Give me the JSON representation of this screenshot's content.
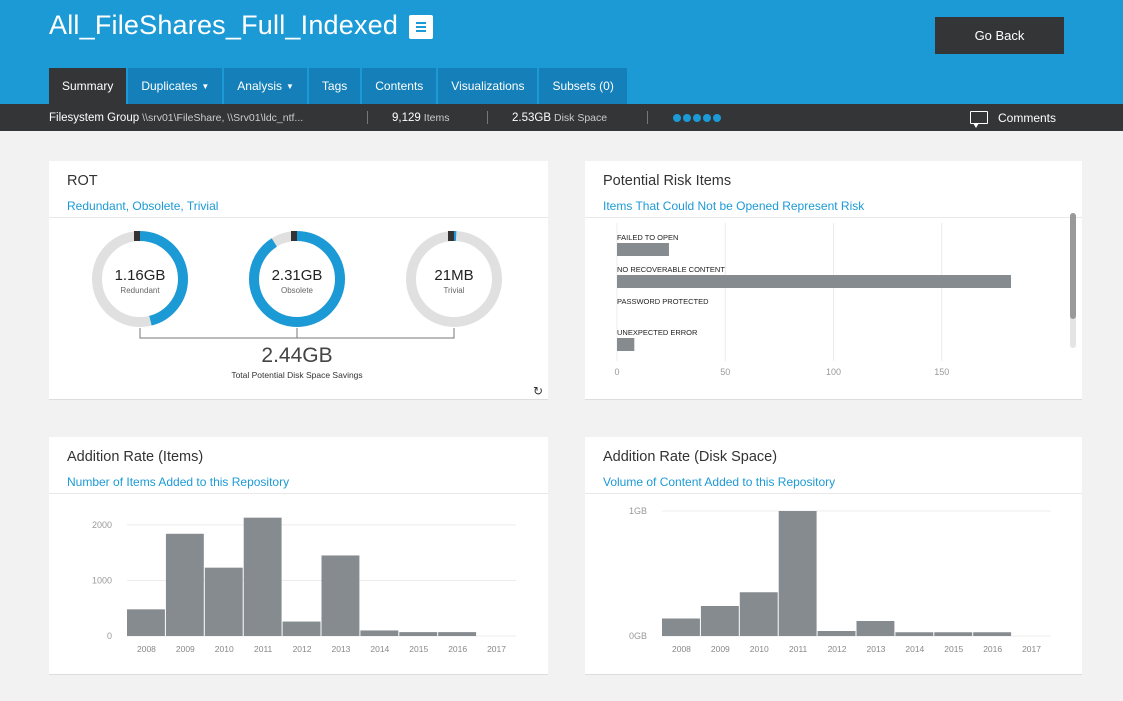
{
  "header": {
    "title": "All_FileShares_Full_Indexed",
    "go_back_label": "Go Back",
    "menu_icon": "hamburger-icon"
  },
  "tabs": [
    {
      "label": "Summary",
      "active": true,
      "caret": ""
    },
    {
      "label": "Duplicates",
      "active": false,
      "caret": "▼"
    },
    {
      "label": "Analysis",
      "active": false,
      "caret": "▼"
    },
    {
      "label": "Tags",
      "active": false,
      "caret": ""
    },
    {
      "label": "Contents",
      "active": false,
      "caret": ""
    },
    {
      "label": "Visualizations",
      "active": false,
      "caret": ""
    },
    {
      "label": "Subsets (0)",
      "active": false,
      "caret": ""
    }
  ],
  "infobar": {
    "group_label": "Filesystem Group",
    "group_value": "\\\\srv01\\FileShare, \\\\Srv01\\ldc_ntf...",
    "items_value": "9,129",
    "items_label": "Items",
    "space_value": "2.53GB",
    "space_label": "Disk Space",
    "comments_label": "Comments"
  },
  "rot": {
    "title": "ROT",
    "subtitle": "Redundant, Obsolete, Trivial",
    "donuts": [
      {
        "value": "1.16GB",
        "label": "Redundant",
        "fraction": 0.46
      },
      {
        "value": "2.31GB",
        "label": "Obsolete",
        "fraction": 0.91
      },
      {
        "value": "21MB",
        "label": "Trivial",
        "fraction": 0.008
      }
    ],
    "total": "2.44GB",
    "total_label": "Total Potential Disk Space Savings",
    "colors": {
      "accent": "#1c9ad6",
      "track": "#e0e0e0",
      "marker": "#333333"
    }
  },
  "risk": {
    "title": "Potential Risk Items",
    "subtitle": "Items That Could Not be Opened Represent Risk"
  },
  "items_rate": {
    "title": "Addition Rate (Items)",
    "subtitle": "Number of Items Added to this Repository"
  },
  "disk_rate": {
    "title": "Addition Rate (Disk Space)",
    "subtitle": "Volume of Content Added to this Repository"
  },
  "chart_data": [
    {
      "type": "bar",
      "orientation": "horizontal",
      "categories": [
        "FAILED TO OPEN",
        "NO RECOVERABLE CONTENT",
        "PASSWORD PROTECTED",
        "UNEXPECTED ERROR"
      ],
      "values": [
        24,
        182,
        0,
        8
      ],
      "xticks": [
        "0",
        "50",
        "100",
        "150"
      ],
      "xlim": [
        0,
        200
      ],
      "grid": true,
      "color": "#858b8f"
    },
    {
      "type": "bar",
      "categories": [
        "2008",
        "2009",
        "2010",
        "2011",
        "2012",
        "2013",
        "2014",
        "2015",
        "2016",
        "2017"
      ],
      "values": [
        480,
        1840,
        1230,
        2130,
        260,
        1450,
        100,
        70,
        70,
        0
      ],
      "yticks": [
        "0",
        "1000",
        "2000"
      ],
      "ylim": [
        0,
        2250
      ],
      "grid": true,
      "color": "#858b8f"
    },
    {
      "type": "bar",
      "categories": [
        "2008",
        "2009",
        "2010",
        "2011",
        "2012",
        "2013",
        "2014",
        "2015",
        "2016",
        "2017"
      ],
      "values": [
        0.14,
        0.24,
        0.35,
        1.0,
        0.04,
        0.12,
        0.03,
        0.03,
        0.03,
        0
      ],
      "yticks": [
        "0GB",
        "1GB"
      ],
      "ylim": [
        0,
        1.0
      ],
      "grid": true,
      "color": "#858b8f"
    }
  ]
}
